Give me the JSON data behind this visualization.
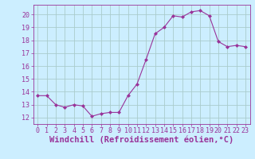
{
  "x": [
    0,
    1,
    2,
    3,
    4,
    5,
    6,
    7,
    8,
    9,
    10,
    11,
    12,
    13,
    14,
    15,
    16,
    17,
    18,
    19,
    20,
    21,
    22,
    23
  ],
  "y": [
    13.7,
    13.7,
    13.0,
    12.8,
    13.0,
    12.9,
    12.1,
    12.3,
    12.4,
    12.4,
    13.7,
    14.6,
    16.5,
    18.5,
    19.0,
    19.9,
    19.8,
    20.2,
    20.3,
    19.9,
    17.9,
    17.5,
    17.6,
    17.5
  ],
  "xlim": [
    -0.5,
    23.5
  ],
  "ylim": [
    11.5,
    20.75
  ],
  "yticks": [
    12,
    13,
    14,
    15,
    16,
    17,
    18,
    19,
    20
  ],
  "xticks": [
    0,
    1,
    2,
    3,
    4,
    5,
    6,
    7,
    8,
    9,
    10,
    11,
    12,
    13,
    14,
    15,
    16,
    17,
    18,
    19,
    20,
    21,
    22,
    23
  ],
  "xlabel": "Windchill (Refroidissement éolien,°C)",
  "line_color": "#993399",
  "marker": "D",
  "marker_size": 2,
  "bg_color": "#cceeff",
  "grid_color": "#aacccc",
  "tick_label_fontsize": 6,
  "xlabel_fontsize": 7.5
}
